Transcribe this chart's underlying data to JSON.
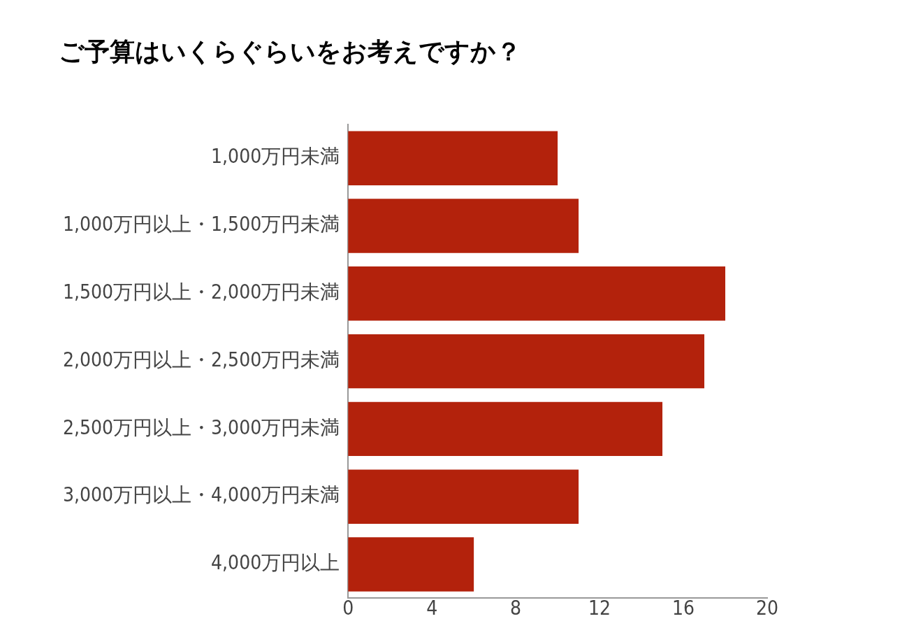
{
  "chart_data": {
    "type": "bar",
    "title": "ご予算はいくらぐらいをお考えですか？",
    "orientation": "horizontal",
    "categories": [
      "1,000万円未満",
      "1,000万円以上・1,500万円未満",
      "1,500万円以上・2,000万円未満",
      "2,000万円以上・2,500万円未満",
      "2,500万円以上・3,000万円未満",
      "3,000万円以上・4,000万円未満",
      "4,000万円以上"
    ],
    "values": [
      10,
      11,
      18,
      17,
      15,
      11,
      6
    ],
    "color": "#b3220c",
    "xlim": [
      0,
      20
    ],
    "xticks": [
      0,
      4,
      8,
      12,
      16,
      20
    ],
    "grid": false
  }
}
